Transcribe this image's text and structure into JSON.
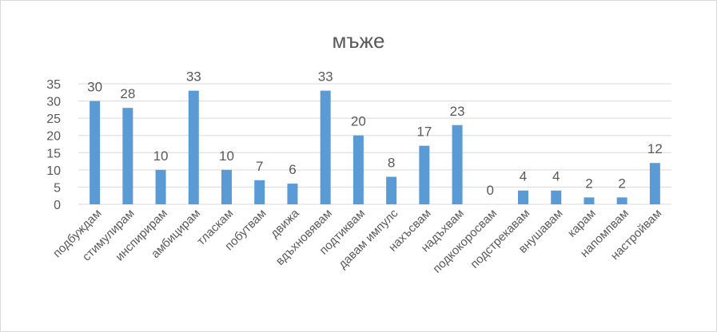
{
  "chart_data": {
    "type": "bar",
    "title": "мъже",
    "xlabel": "",
    "ylabel": "",
    "categories": [
      "подбуждам",
      "стимулирам",
      "инспирирам",
      "амбицирам",
      "тласкам",
      "побутвам",
      "движа",
      "вдъхновявам",
      "подтиквам",
      "давам импулс",
      "нахъсвам",
      "надъхвам",
      "подкокоросвам",
      "подстрекавам",
      "внушавам",
      "карам",
      "напомпвам",
      "настройвам"
    ],
    "values": [
      30,
      28,
      10,
      33,
      10,
      7,
      6,
      33,
      20,
      8,
      17,
      23,
      0,
      4,
      4,
      2,
      2,
      12
    ],
    "data_labels": [
      "30",
      "28",
      "10",
      "33",
      "10",
      "7",
      "6",
      "33",
      "20",
      "8",
      "17",
      "23",
      "0",
      "4",
      "4",
      "2",
      "2",
      "12"
    ],
    "ylim": [
      0,
      35
    ],
    "yticks": [
      "0",
      "5",
      "10",
      "15",
      "20",
      "25",
      "30",
      "35"
    ],
    "ytick_values": [
      0,
      5,
      10,
      15,
      20,
      25,
      30,
      35
    ],
    "grid": true,
    "legend": "none",
    "bar_color": "#5b9bd5",
    "grid_color": "#d9d9d9",
    "text_color": "#595959"
  }
}
